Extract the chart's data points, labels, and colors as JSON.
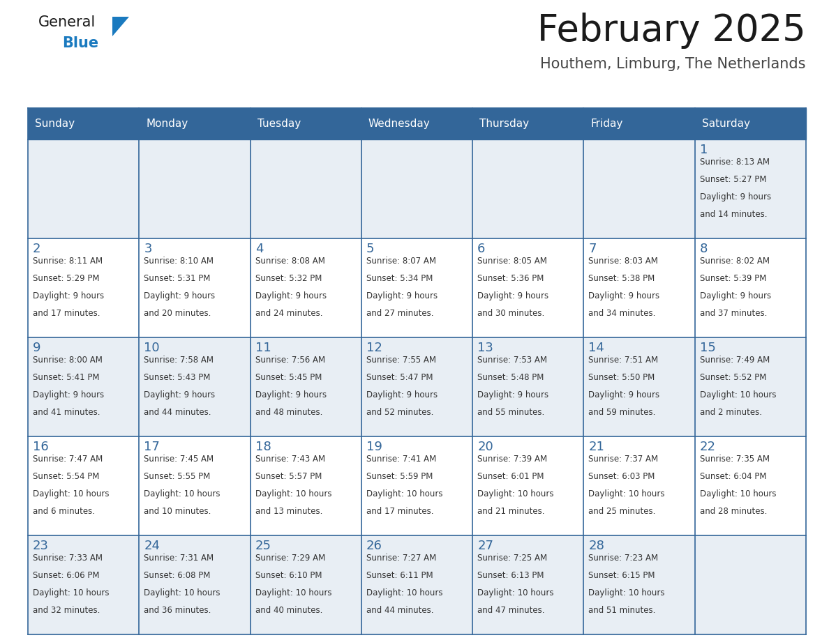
{
  "title": "February 2025",
  "subtitle": "Houthem, Limburg, The Netherlands",
  "header_bg": "#336699",
  "header_text_color": "#ffffff",
  "cell_bg_light": "#e8eef4",
  "cell_bg_white": "#ffffff",
  "day_number_color": "#336699",
  "info_text_color": "#333333",
  "grid_line_color": "#336699",
  "days_of_week": [
    "Sunday",
    "Monday",
    "Tuesday",
    "Wednesday",
    "Thursday",
    "Friday",
    "Saturday"
  ],
  "weeks": [
    [
      {
        "day": null,
        "sunrise": null,
        "sunset": null,
        "daylight": null
      },
      {
        "day": null,
        "sunrise": null,
        "sunset": null,
        "daylight": null
      },
      {
        "day": null,
        "sunrise": null,
        "sunset": null,
        "daylight": null
      },
      {
        "day": null,
        "sunrise": null,
        "sunset": null,
        "daylight": null
      },
      {
        "day": null,
        "sunrise": null,
        "sunset": null,
        "daylight": null
      },
      {
        "day": null,
        "sunrise": null,
        "sunset": null,
        "daylight": null
      },
      {
        "day": 1,
        "sunrise": "8:13 AM",
        "sunset": "5:27 PM",
        "daylight": "9 hours and 14 minutes."
      }
    ],
    [
      {
        "day": 2,
        "sunrise": "8:11 AM",
        "sunset": "5:29 PM",
        "daylight": "9 hours and 17 minutes."
      },
      {
        "day": 3,
        "sunrise": "8:10 AM",
        "sunset": "5:31 PM",
        "daylight": "9 hours and 20 minutes."
      },
      {
        "day": 4,
        "sunrise": "8:08 AM",
        "sunset": "5:32 PM",
        "daylight": "9 hours and 24 minutes."
      },
      {
        "day": 5,
        "sunrise": "8:07 AM",
        "sunset": "5:34 PM",
        "daylight": "9 hours and 27 minutes."
      },
      {
        "day": 6,
        "sunrise": "8:05 AM",
        "sunset": "5:36 PM",
        "daylight": "9 hours and 30 minutes."
      },
      {
        "day": 7,
        "sunrise": "8:03 AM",
        "sunset": "5:38 PM",
        "daylight": "9 hours and 34 minutes."
      },
      {
        "day": 8,
        "sunrise": "8:02 AM",
        "sunset": "5:39 PM",
        "daylight": "9 hours and 37 minutes."
      }
    ],
    [
      {
        "day": 9,
        "sunrise": "8:00 AM",
        "sunset": "5:41 PM",
        "daylight": "9 hours and 41 minutes."
      },
      {
        "day": 10,
        "sunrise": "7:58 AM",
        "sunset": "5:43 PM",
        "daylight": "9 hours and 44 minutes."
      },
      {
        "day": 11,
        "sunrise": "7:56 AM",
        "sunset": "5:45 PM",
        "daylight": "9 hours and 48 minutes."
      },
      {
        "day": 12,
        "sunrise": "7:55 AM",
        "sunset": "5:47 PM",
        "daylight": "9 hours and 52 minutes."
      },
      {
        "day": 13,
        "sunrise": "7:53 AM",
        "sunset": "5:48 PM",
        "daylight": "9 hours and 55 minutes."
      },
      {
        "day": 14,
        "sunrise": "7:51 AM",
        "sunset": "5:50 PM",
        "daylight": "9 hours and 59 minutes."
      },
      {
        "day": 15,
        "sunrise": "7:49 AM",
        "sunset": "5:52 PM",
        "daylight": "10 hours and 2 minutes."
      }
    ],
    [
      {
        "day": 16,
        "sunrise": "7:47 AM",
        "sunset": "5:54 PM",
        "daylight": "10 hours and 6 minutes."
      },
      {
        "day": 17,
        "sunrise": "7:45 AM",
        "sunset": "5:55 PM",
        "daylight": "10 hours and 10 minutes."
      },
      {
        "day": 18,
        "sunrise": "7:43 AM",
        "sunset": "5:57 PM",
        "daylight": "10 hours and 13 minutes."
      },
      {
        "day": 19,
        "sunrise": "7:41 AM",
        "sunset": "5:59 PM",
        "daylight": "10 hours and 17 minutes."
      },
      {
        "day": 20,
        "sunrise": "7:39 AM",
        "sunset": "6:01 PM",
        "daylight": "10 hours and 21 minutes."
      },
      {
        "day": 21,
        "sunrise": "7:37 AM",
        "sunset": "6:03 PM",
        "daylight": "10 hours and 25 minutes."
      },
      {
        "day": 22,
        "sunrise": "7:35 AM",
        "sunset": "6:04 PM",
        "daylight": "10 hours and 28 minutes."
      }
    ],
    [
      {
        "day": 23,
        "sunrise": "7:33 AM",
        "sunset": "6:06 PM",
        "daylight": "10 hours and 32 minutes."
      },
      {
        "day": 24,
        "sunrise": "7:31 AM",
        "sunset": "6:08 PM",
        "daylight": "10 hours and 36 minutes."
      },
      {
        "day": 25,
        "sunrise": "7:29 AM",
        "sunset": "6:10 PM",
        "daylight": "10 hours and 40 minutes."
      },
      {
        "day": 26,
        "sunrise": "7:27 AM",
        "sunset": "6:11 PM",
        "daylight": "10 hours and 44 minutes."
      },
      {
        "day": 27,
        "sunrise": "7:25 AM",
        "sunset": "6:13 PM",
        "daylight": "10 hours and 47 minutes."
      },
      {
        "day": 28,
        "sunrise": "7:23 AM",
        "sunset": "6:15 PM",
        "daylight": "10 hours and 51 minutes."
      },
      {
        "day": null,
        "sunrise": null,
        "sunset": null,
        "daylight": null
      }
    ]
  ],
  "logo_general_color": "#1a1a1a",
  "logo_blue_color": "#1a7abf",
  "logo_triangle_color": "#1a7abf",
  "title_fontsize": 38,
  "subtitle_fontsize": 15,
  "header_fontsize": 11,
  "day_num_fontsize": 13,
  "info_fontsize": 8.5
}
